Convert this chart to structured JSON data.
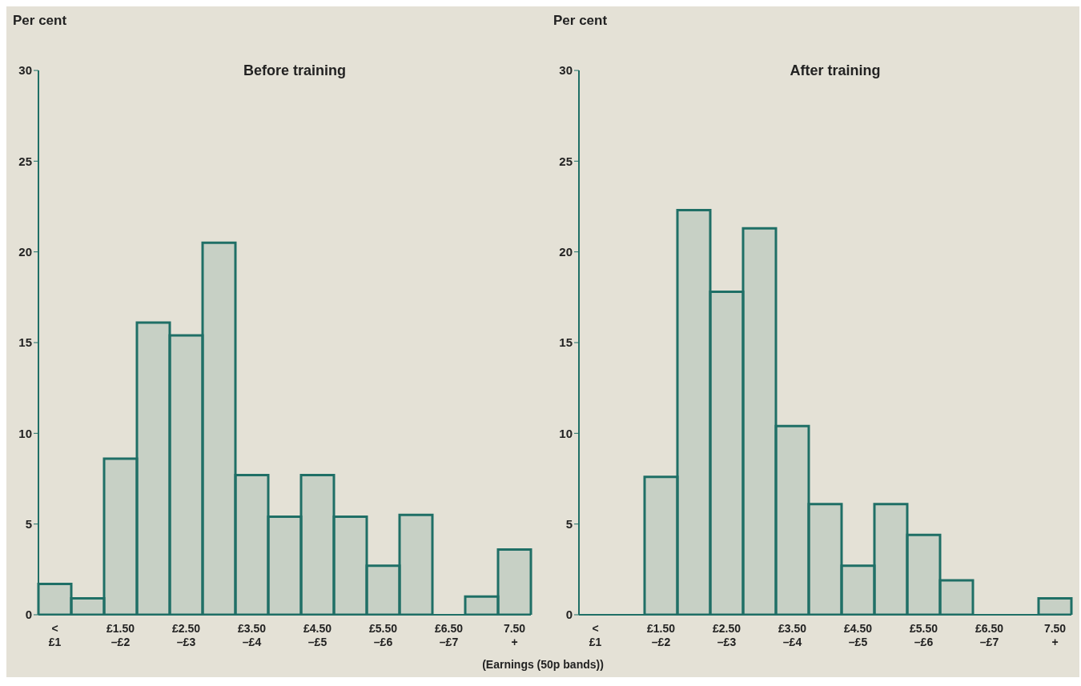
{
  "chart_data": [
    {
      "type": "bar",
      "title": "Before training",
      "ylabel": "Per cent",
      "xlabel": "(Earnings (50p bands))",
      "categories": [
        "<\n£1",
        null,
        "£1.50\n–£2",
        null,
        "£2.50\n–£3",
        null,
        "£3.50\n–£4",
        null,
        "£4.50\n–£5",
        null,
        "£5.50\n–£6",
        null,
        "£6.50\n–£7",
        null,
        "7.50\n+"
      ],
      "values": [
        1.7,
        0.9,
        8.6,
        16.1,
        15.4,
        20.5,
        7.7,
        5.4,
        7.7,
        5.4,
        2.7,
        5.5,
        0,
        1.0,
        3.6
      ],
      "color": "#1f6f66",
      "ylim": [
        0,
        30
      ],
      "yticks": [
        0,
        5,
        10,
        15,
        20,
        25,
        30
      ]
    },
    {
      "type": "bar",
      "title": "After training",
      "ylabel": "Per cent",
      "categories": [
        "<\n£1",
        null,
        "£1.50\n–£2",
        null,
        "£2.50\n–£3",
        null,
        "£3.50\n–£4",
        null,
        "£4.50\n–£5",
        null,
        "£5.50\n–£6",
        null,
        "£6.50\n–£7",
        null,
        "7.50\n+"
      ],
      "values": [
        0,
        0,
        7.6,
        22.3,
        17.8,
        21.3,
        10.4,
        6.1,
        2.7,
        6.1,
        4.4,
        1.9,
        0,
        0,
        0.9
      ],
      "color": "#1f6f66",
      "ylim": [
        0,
        30
      ],
      "yticks": [
        0,
        5,
        10,
        15,
        20,
        25,
        30
      ]
    }
  ]
}
